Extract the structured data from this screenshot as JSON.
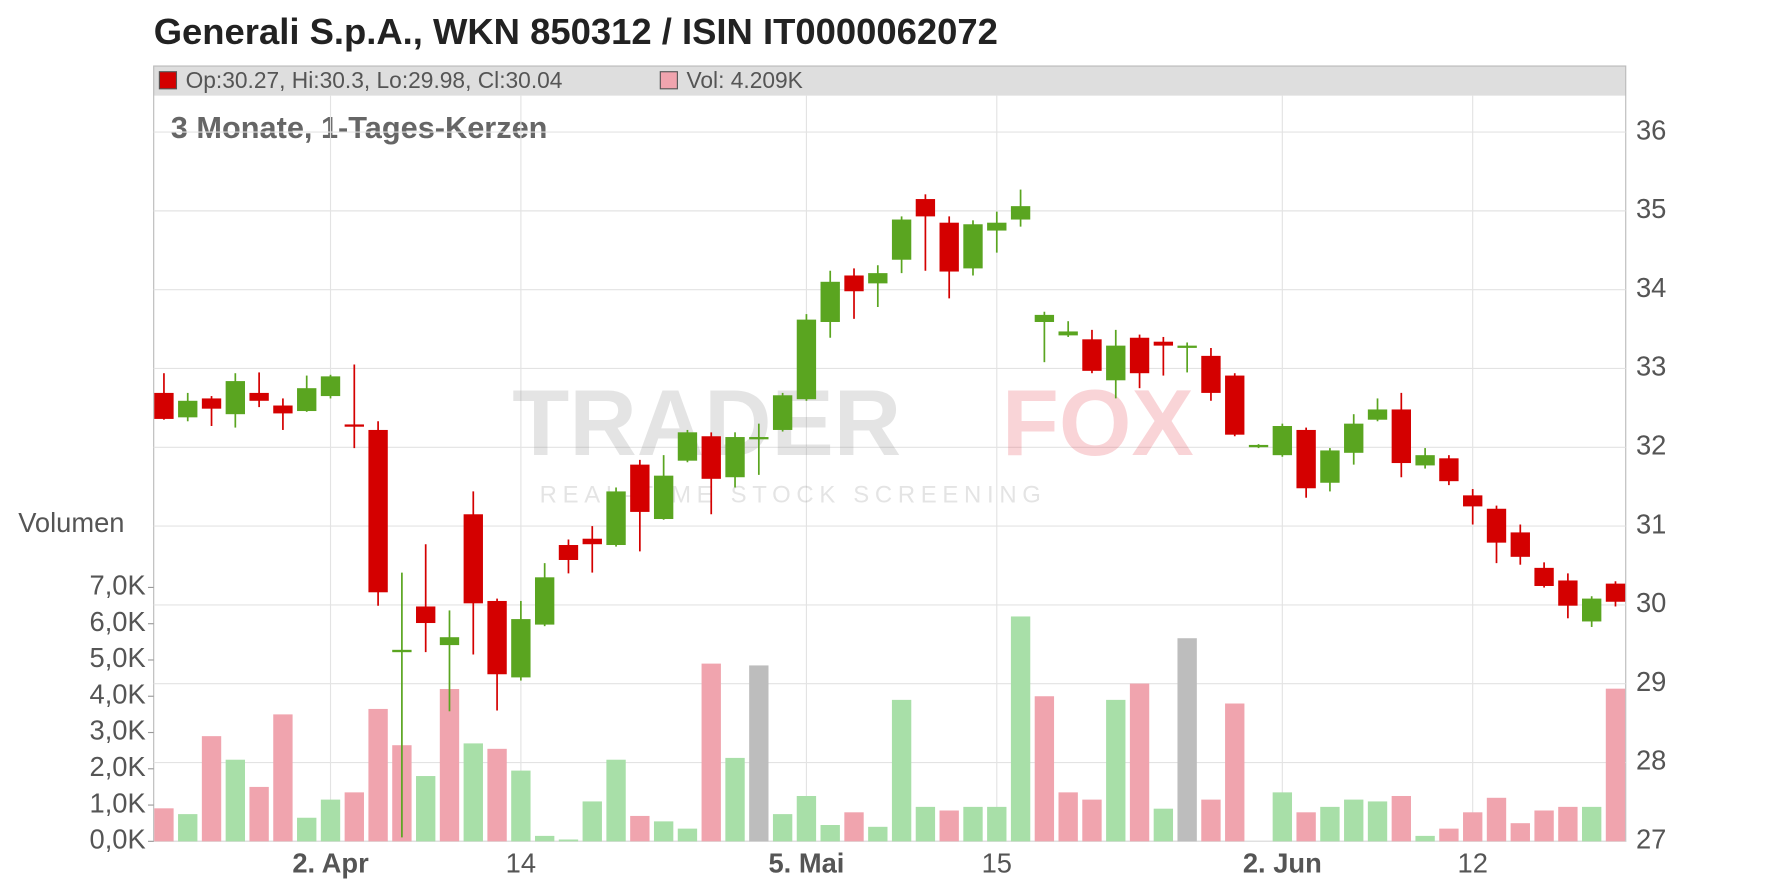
{
  "chart_data": {
    "type": "candlestick",
    "title": "Generali S.p.A., WKN 850312 / ISIN IT0000062072",
    "subtitle": "3 Monate, 1-Tages-Kerzen",
    "legend": [
      {
        "name": "Op:30.27, Hi:30.3, Lo:29.98, Cl:30.04",
        "color": "#d40000"
      },
      {
        "name": "Vol: 4.209K",
        "color": "#f0a4ae"
      }
    ],
    "watermark": {
      "parts": [
        "TRADER",
        "FOX"
      ],
      "tagline": "REAL-TIME STOCK SCREENING"
    },
    "y2_label": "Volumen",
    "categories": [
      null,
      null,
      null,
      null,
      null,
      null,
      null,
      "2. Apr",
      null,
      null,
      null,
      null,
      null,
      null,
      null,
      "14",
      null,
      null,
      null,
      null,
      null,
      null,
      null,
      null,
      null,
      null,
      null,
      "5. Mai",
      null,
      null,
      null,
      null,
      null,
      null,
      null,
      "15",
      null,
      null,
      null,
      null,
      null,
      null,
      null,
      null,
      null,
      null,
      null,
      "2. Jun",
      null,
      null,
      null,
      null,
      null,
      null,
      null,
      "12",
      null,
      null,
      null,
      null,
      null,
      null
    ],
    "open": [
      32.69,
      32.38,
      32.62,
      32.42,
      32.69,
      32.53,
      32.46,
      32.65,
      32.29,
      32.22,
      29.4,
      29.98,
      29.49,
      31.15,
      30.05,
      29.08,
      29.75,
      30.76,
      30.84,
      30.76,
      31.78,
      31.09,
      31.83,
      32.14,
      31.62,
      32.13,
      32.22,
      32.61,
      33.59,
      34.18,
      34.08,
      34.38,
      35.15,
      34.85,
      34.27,
      34.75,
      34.89,
      33.59,
      33.42,
      33.37,
      32.85,
      33.39,
      33.34,
      33.29,
      33.16,
      32.91,
      32.01,
      31.9,
      32.22,
      31.55,
      31.93,
      32.35,
      32.48,
      31.77,
      31.86,
      31.39,
      31.22,
      30.92,
      30.47,
      30.31,
      29.79,
      30.27
    ],
    "high": [
      32.94,
      32.69,
      32.65,
      32.94,
      32.95,
      32.62,
      32.91,
      32.92,
      33.05,
      32.33,
      30.41,
      30.77,
      29.93,
      31.44,
      30.08,
      30.05,
      30.53,
      30.83,
      31.0,
      31.49,
      31.84,
      31.9,
      32.22,
      32.19,
      32.19,
      32.3,
      32.69,
      33.69,
      34.24,
      34.27,
      34.31,
      34.93,
      35.21,
      34.93,
      34.88,
      34.99,
      35.27,
      33.72,
      33.6,
      33.49,
      33.49,
      33.43,
      33.4,
      33.33,
      33.26,
      32.94,
      32.04,
      32.3,
      32.25,
      31.99,
      32.42,
      32.62,
      32.69,
      31.99,
      31.9,
      31.47,
      31.26,
      31.02,
      30.54,
      30.4,
      30.11,
      30.3
    ],
    "low": [
      32.35,
      32.33,
      32.27,
      32.25,
      32.51,
      32.22,
      32.45,
      32.62,
      31.99,
      29.99,
      27.05,
      29.4,
      28.65,
      29.37,
      28.66,
      29.04,
      29.73,
      30.4,
      30.41,
      30.74,
      30.68,
      31.08,
      31.81,
      31.15,
      31.49,
      31.65,
      32.2,
      32.59,
      33.39,
      33.63,
      33.78,
      34.21,
      34.24,
      33.89,
      34.18,
      34.47,
      34.8,
      33.08,
      33.4,
      32.94,
      32.62,
      32.75,
      32.91,
      32.95,
      32.59,
      32.14,
      31.99,
      31.88,
      31.36,
      31.44,
      31.78,
      32.33,
      31.62,
      31.73,
      31.52,
      31.02,
      30.53,
      30.51,
      30.22,
      29.83,
      29.72,
      29.98
    ],
    "close": [
      32.36,
      32.59,
      32.49,
      32.84,
      32.59,
      32.43,
      32.75,
      32.9,
      32.27,
      30.16,
      29.43,
      29.77,
      29.59,
      30.02,
      29.12,
      29.82,
      30.35,
      30.57,
      30.77,
      31.44,
      31.18,
      31.64,
      32.19,
      31.6,
      32.13,
      32.13,
      32.66,
      33.62,
      34.1,
      33.98,
      34.21,
      34.89,
      34.93,
      34.23,
      34.83,
      34.85,
      35.06,
      33.68,
      33.47,
      32.97,
      33.29,
      32.94,
      33.29,
      33.29,
      32.69,
      32.16,
      32.03,
      32.27,
      31.48,
      31.96,
      32.3,
      32.48,
      31.8,
      31.9,
      31.57,
      31.25,
      30.79,
      30.61,
      30.24,
      29.99,
      30.08,
      30.04
    ],
    "volume": [
      0.91,
      0.75,
      2.9,
      2.25,
      1.5,
      3.5,
      0.65,
      1.15,
      1.35,
      3.65,
      2.65,
      1.8,
      4.2,
      2.7,
      2.55,
      1.95,
      0.15,
      0.05,
      1.1,
      2.25,
      0.7,
      0.55,
      0.35,
      4.9,
      2.3,
      4.85,
      0.75,
      1.25,
      0.45,
      0.8,
      0.4,
      3.9,
      0.95,
      0.85,
      0.95,
      0.95,
      6.2,
      4.0,
      1.35,
      1.15,
      3.9,
      4.35,
      0.9,
      5.6,
      1.15,
      3.8,
      0,
      1.35,
      0.8,
      0.95,
      1.15,
      1.1,
      1.25,
      0.15,
      0.35,
      0.8,
      1.2,
      0.5,
      0.85,
      0.95,
      0.95,
      4.209
    ],
    "colors": {
      "up": "#5aa520",
      "down": "#d40000",
      "volume_up": "#a8dfa8",
      "volume_down": "#f0a4ae",
      "volume_flat": "#bdbdbd"
    },
    "ylim": [
      27,
      36
    ],
    "yticks": [
      27,
      28,
      29,
      30,
      31,
      32,
      33,
      34,
      35,
      36
    ],
    "y2lim": [
      0,
      7
    ],
    "y2ticks": [
      {
        "value": 0,
        "label": "0,0K"
      },
      {
        "value": 1,
        "label": "1,0K"
      },
      {
        "value": 2,
        "label": "2,0K"
      },
      {
        "value": 3,
        "label": "3,0K"
      },
      {
        "value": 4,
        "label": "4,0K"
      },
      {
        "value": 5,
        "label": "5,0K"
      },
      {
        "value": 6,
        "label": "6,0K"
      },
      {
        "value": 7,
        "label": "7,0K"
      }
    ],
    "grid": true
  }
}
